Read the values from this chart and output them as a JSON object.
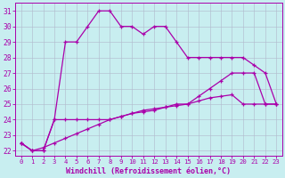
{
  "xlabel": "Windchill (Refroidissement éolien,°C)",
  "xlim": [
    -0.5,
    23.5
  ],
  "ylim": [
    21.7,
    31.5
  ],
  "yticks": [
    22,
    23,
    24,
    25,
    26,
    27,
    28,
    29,
    30,
    31
  ],
  "xticks": [
    0,
    1,
    2,
    3,
    4,
    5,
    6,
    7,
    8,
    9,
    10,
    11,
    12,
    13,
    14,
    15,
    16,
    17,
    18,
    19,
    20,
    21,
    22,
    23
  ],
  "bg_color": "#c8eef0",
  "line_color": "#aa00aa",
  "grid_color": "#b0b8cc",
  "line1_x": [
    0,
    1,
    2,
    3,
    4,
    5,
    6,
    7,
    8,
    9,
    10,
    11,
    12,
    13,
    14,
    15,
    16,
    17,
    18,
    19,
    20,
    21,
    22,
    23
  ],
  "line1_y": [
    22.5,
    22.0,
    22.0,
    24.0,
    29.0,
    29.0,
    30.0,
    31.0,
    31.0,
    30.0,
    30.0,
    29.5,
    30.0,
    30.0,
    29.0,
    28.0,
    28.0,
    28.0,
    28.0,
    28.0,
    28.0,
    27.5,
    27.0,
    25.0
  ],
  "line2_x": [
    0,
    1,
    2,
    3,
    4,
    5,
    6,
    7,
    8,
    9,
    10,
    11,
    12,
    13,
    14,
    15,
    16,
    17,
    18,
    19,
    20,
    21,
    22,
    23
  ],
  "line2_y": [
    22.5,
    22.0,
    22.0,
    24.0,
    24.0,
    24.0,
    24.0,
    24.0,
    24.0,
    24.2,
    24.4,
    24.5,
    24.6,
    24.8,
    24.9,
    25.0,
    25.5,
    26.0,
    26.5,
    27.0,
    27.0,
    27.0,
    25.0,
    25.0
  ],
  "line3_x": [
    0,
    1,
    2,
    3,
    4,
    5,
    6,
    7,
    8,
    9,
    10,
    11,
    12,
    13,
    14,
    15,
    16,
    17,
    18,
    19,
    20,
    21,
    22,
    23
  ],
  "line3_y": [
    22.5,
    22.0,
    22.2,
    22.5,
    22.8,
    23.1,
    23.4,
    23.7,
    24.0,
    24.2,
    24.4,
    24.6,
    24.7,
    24.8,
    25.0,
    25.0,
    25.2,
    25.4,
    25.5,
    25.6,
    25.0,
    25.0,
    25.0,
    25.0
  ]
}
